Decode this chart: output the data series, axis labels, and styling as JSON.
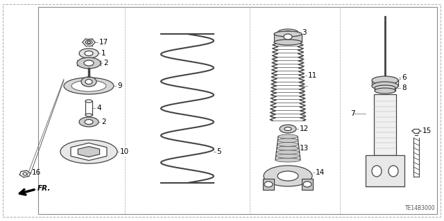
{
  "bg_color": "#ffffff",
  "parts_color": "#444444",
  "label_color": "#000000",
  "part_number_code": "TE14B3000",
  "border_color": "#aaaaaa",
  "figsize": [
    6.4,
    3.19
  ],
  "dpi": 100
}
